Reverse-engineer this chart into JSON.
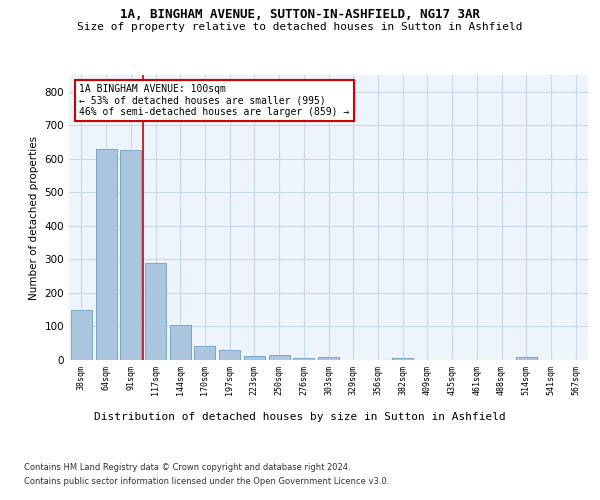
{
  "title1": "1A, BINGHAM AVENUE, SUTTON-IN-ASHFIELD, NG17 3AR",
  "title2": "Size of property relative to detached houses in Sutton in Ashfield",
  "xlabel": "Distribution of detached houses by size in Sutton in Ashfield",
  "ylabel": "Number of detached properties",
  "categories": [
    "38sqm",
    "64sqm",
    "91sqm",
    "117sqm",
    "144sqm",
    "170sqm",
    "197sqm",
    "223sqm",
    "250sqm",
    "276sqm",
    "303sqm",
    "329sqm",
    "356sqm",
    "382sqm",
    "409sqm",
    "435sqm",
    "461sqm",
    "488sqm",
    "514sqm",
    "541sqm",
    "567sqm"
  ],
  "values": [
    148,
    628,
    625,
    288,
    103,
    42,
    30,
    12,
    14,
    5,
    8,
    0,
    0,
    5,
    0,
    0,
    0,
    0,
    8,
    0,
    0
  ],
  "bar_color": "#adc6e0",
  "bar_edge_color": "#7aaac8",
  "grid_color": "#c8d8e8",
  "bg_color": "#eef4fb",
  "red_line_x": 2.5,
  "annotation_text": "1A BINGHAM AVENUE: 100sqm\n← 53% of detached houses are smaller (995)\n46% of semi-detached houses are larger (859) →",
  "annotation_box_color": "#ffffff",
  "annotation_box_edge": "#cc0000",
  "footnote1": "Contains HM Land Registry data © Crown copyright and database right 2024.",
  "footnote2": "Contains public sector information licensed under the Open Government Licence v3.0.",
  "ylim": [
    0,
    850
  ],
  "yticks": [
    0,
    100,
    200,
    300,
    400,
    500,
    600,
    700,
    800
  ]
}
